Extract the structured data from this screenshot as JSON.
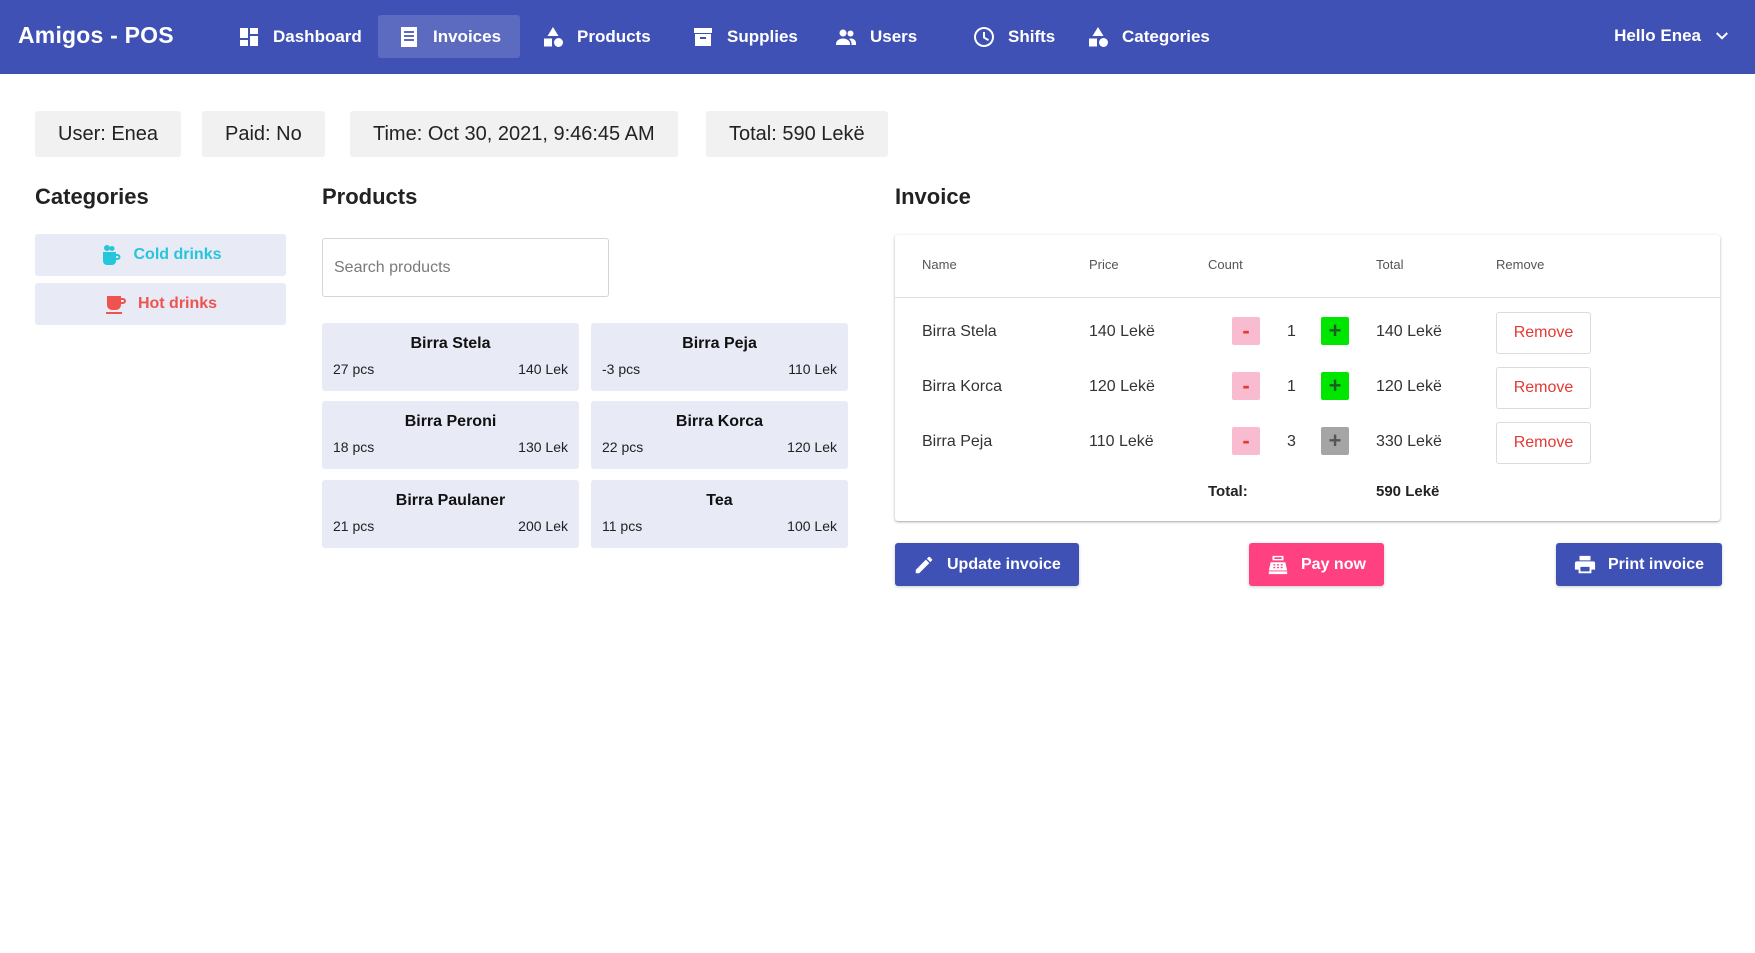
{
  "app": {
    "title": "Amigos - POS"
  },
  "nav": {
    "items": [
      {
        "label": "Dashboard",
        "icon": "dashboard-icon"
      },
      {
        "label": "Invoices",
        "icon": "invoice-icon"
      },
      {
        "label": "Products",
        "icon": "shapes-icon"
      },
      {
        "label": "Supplies",
        "icon": "archive-icon"
      },
      {
        "label": "Users",
        "icon": "users-icon"
      },
      {
        "label": "Shifts",
        "icon": "clock-icon"
      },
      {
        "label": "Categories",
        "icon": "shapes-icon"
      }
    ],
    "active": "Invoices",
    "user_greeting": "Hello Enea"
  },
  "info": {
    "user": "User: Enea",
    "paid": "Paid: No",
    "time": "Time: Oct 30, 2021, 9:46:45 AM",
    "total": "Total: 590 Lekë"
  },
  "categories": {
    "title": "Categories",
    "items": [
      {
        "label": "Cold drinks",
        "color": "#26c6da",
        "icon": "cold-drink-icon"
      },
      {
        "label": "Hot drinks",
        "color": "#ef5350",
        "icon": "hot-drink-icon"
      }
    ]
  },
  "products": {
    "title": "Products",
    "search_placeholder": "Search products",
    "items": [
      {
        "name": "Birra Stela",
        "stock": "27 pcs",
        "price": "140 Lek"
      },
      {
        "name": "Birra Peja",
        "stock": "-3 pcs",
        "price": "110 Lek"
      },
      {
        "name": "Birra Peroni",
        "stock": "18 pcs",
        "price": "130 Lek"
      },
      {
        "name": "Birra Korca",
        "stock": "22 pcs",
        "price": "120 Lek"
      },
      {
        "name": "Birra Paulaner",
        "stock": "21 pcs",
        "price": "200 Lek"
      },
      {
        "name": "Tea",
        "stock": "11 pcs",
        "price": "100 Lek"
      }
    ]
  },
  "invoice": {
    "title": "Invoice",
    "columns": {
      "name": "Name",
      "price": "Price",
      "count": "Count",
      "total": "Total",
      "remove": "Remove"
    },
    "rows": [
      {
        "name": "Birra Stela",
        "price": "140 Lekë",
        "count": "1",
        "total": "140 Lekë",
        "plus_enabled": true
      },
      {
        "name": "Birra Korca",
        "price": "120 Lekë",
        "count": "1",
        "total": "120 Lekë",
        "plus_enabled": true
      },
      {
        "name": "Birra Peja",
        "price": "110 Lekë",
        "count": "3",
        "total": "330 Lekë",
        "plus_enabled": false
      }
    ],
    "minus_label": "-",
    "plus_label": "+",
    "remove_label": "Remove",
    "total_label": "Total:",
    "total_value": "590 Lekë"
  },
  "actions": {
    "update": "Update invoice",
    "pay": "Pay now",
    "print": "Print invoice"
  },
  "colors": {
    "primary": "#3f51b5",
    "pay": "#ff4081",
    "danger": "#e53935"
  }
}
